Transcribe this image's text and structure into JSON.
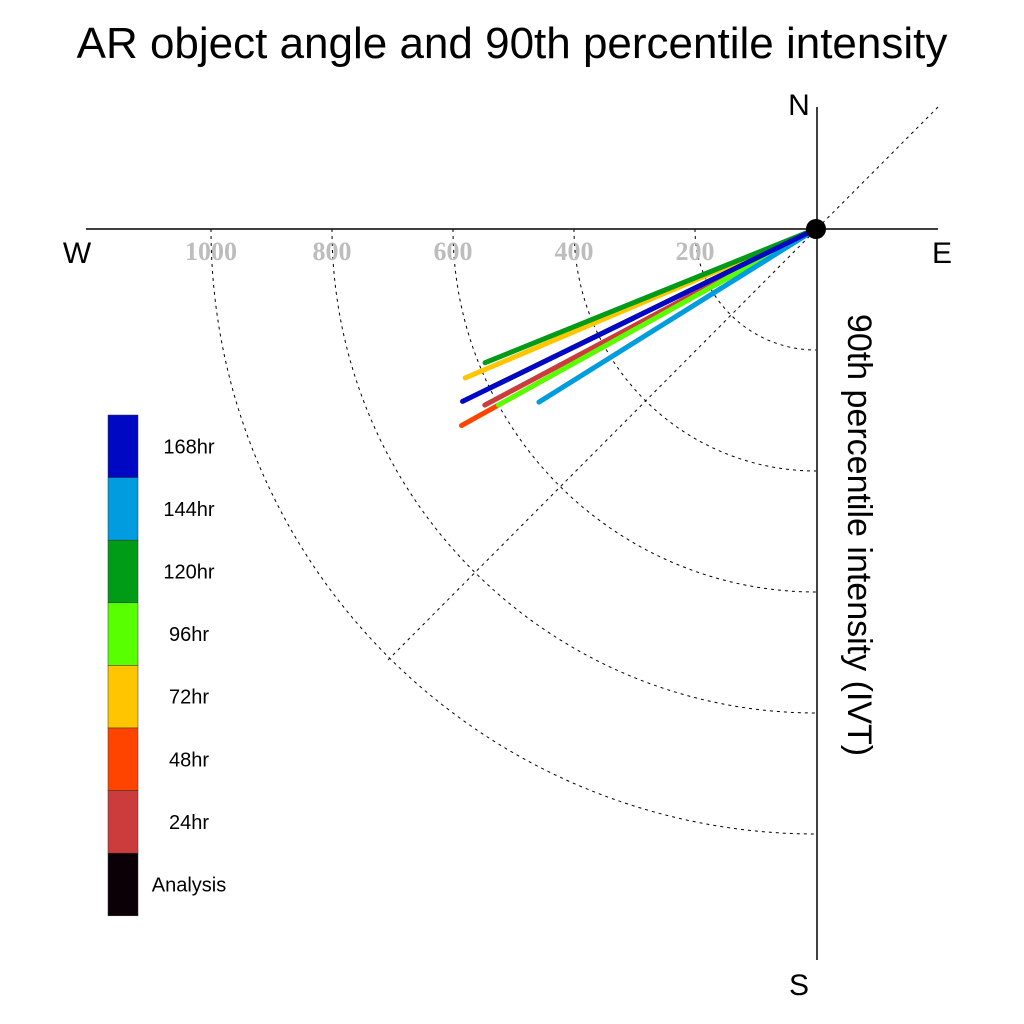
{
  "chart_data": {
    "type": "polar-line",
    "title": "AR object angle and 90th percentile intensity",
    "radial_label": "90th percentile intensity (IVT)",
    "compass": {
      "north": "N",
      "south": "S",
      "east": "E",
      "west": "W"
    },
    "radial_ticks": [
      200,
      400,
      600,
      800,
      1000
    ],
    "radial_tick_labels": [
      "200",
      "400",
      "600",
      "800",
      "1000"
    ],
    "rmax": 1200,
    "unit_note": "angle in degrees measured counter-clockwise from east; west is 180",
    "series": [
      {
        "name": "Analysis",
        "color": "#0b0005",
        "angle": 206,
        "value": 600
      },
      {
        "name": "24hr",
        "color": "#cc3c3c",
        "angle": 208,
        "value": 620
      },
      {
        "name": "48hr",
        "color": "#ff4400",
        "angle": 209,
        "value": 670
      },
      {
        "name": "72hr",
        "color": "#ffc600",
        "angle": 203,
        "value": 630
      },
      {
        "name": "96hr",
        "color": "#58ff00",
        "angle": 209,
        "value": 600
      },
      {
        "name": "120hr",
        "color": "#009b17",
        "angle": 202,
        "value": 590
      },
      {
        "name": "144hr",
        "color": "#009ce0",
        "angle": 212,
        "value": 540
      },
      {
        "name": "168hr",
        "color": "#0008c4",
        "angle": 206,
        "value": 650
      }
    ],
    "legend_order": [
      "168hr",
      "144hr",
      "120hr",
      "96hr",
      "72hr",
      "48hr",
      "24hr",
      "Analysis"
    ],
    "legend_position": "left",
    "grid": true
  }
}
